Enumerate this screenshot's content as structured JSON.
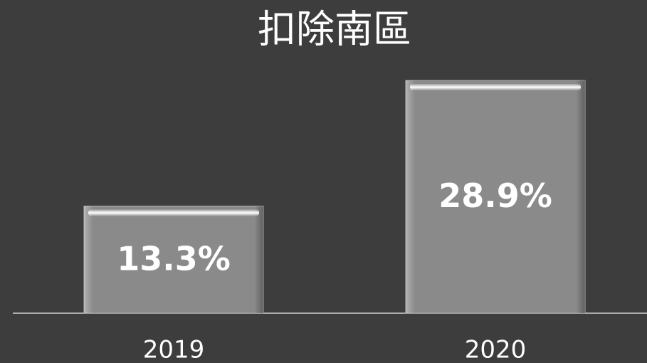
{
  "chart_data": {
    "type": "bar",
    "title": "扣除南區",
    "categories": [
      "2019",
      "2020"
    ],
    "values": [
      13.3,
      28.9
    ],
    "value_labels": [
      "13.3%",
      "28.9%"
    ],
    "color": "#8a8a8a"
  }
}
